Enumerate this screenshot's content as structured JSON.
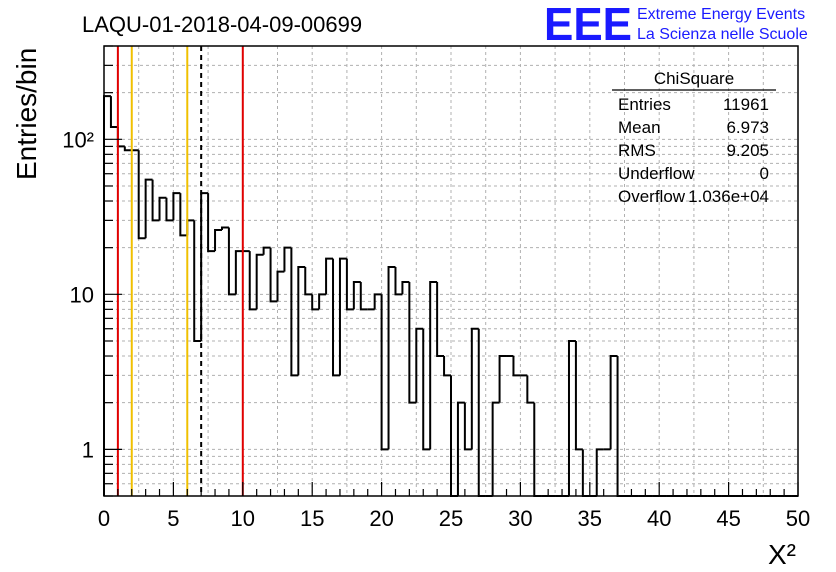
{
  "colors": {
    "accent_red": "#e00000",
    "accent_yellow": "#f0c000",
    "logo_blue": "#1a1aff"
  },
  "logo": {
    "mark": "EEE",
    "line1": "Extreme Energy Events",
    "line2": "La Scienza nelle Scuole"
  },
  "stats": {
    "title": "ChiSquare",
    "rows": [
      {
        "label": "Entries",
        "value": "11961"
      },
      {
        "label": "Mean",
        "value": "6.973"
      },
      {
        "label": "RMS",
        "value": "9.205"
      },
      {
        "label": "Underflow",
        "value": "0"
      },
      {
        "label": "Overflow",
        "value": "1.036e+04"
      }
    ]
  },
  "chart_data": {
    "type": "bar",
    "title": "LAQU-01-2018-04-09-00699",
    "xlabel": "X²",
    "ylabel": "Entries/bin",
    "xlim": [
      0,
      50
    ],
    "ylim": [
      0.5,
      400
    ],
    "log_y": true,
    "grid": true,
    "xticks": [
      "0",
      "5",
      "10",
      "15",
      "20",
      "25",
      "30",
      "35",
      "40",
      "45",
      "50"
    ],
    "yticks": [
      "1",
      "10",
      "10²"
    ],
    "bin_width": 0.5,
    "bin_start": 0,
    "values": [
      190,
      120,
      90,
      85,
      85,
      23,
      55,
      30,
      42,
      30,
      45,
      24,
      30,
      5,
      45,
      19,
      26,
      27,
      10,
      19,
      19,
      8,
      18,
      20,
      9,
      14,
      20,
      3,
      15,
      10,
      8,
      10,
      17,
      3,
      17,
      8,
      12,
      8,
      8,
      10,
      1,
      15,
      10,
      12,
      2,
      6,
      1,
      12,
      4,
      3,
      0,
      2,
      1,
      6,
      0,
      0,
      2,
      4,
      4,
      3,
      3,
      2,
      0,
      0,
      0,
      0,
      0,
      5,
      1,
      0,
      0,
      1,
      1,
      4,
      0,
      0,
      0,
      0,
      0,
      0,
      0,
      0,
      0,
      0,
      0,
      0,
      0,
      0,
      0,
      0,
      0,
      0,
      0,
      0,
      0,
      0,
      0,
      0,
      0,
      0
    ],
    "vlines": [
      {
        "x": 1,
        "color": "red",
        "style": "solid"
      },
      {
        "x": 2,
        "color": "yellow",
        "style": "solid"
      },
      {
        "x": 6,
        "color": "yellow",
        "style": "solid"
      },
      {
        "x": 7,
        "color": "black",
        "style": "dashed"
      },
      {
        "x": 10,
        "color": "red",
        "style": "solid"
      }
    ]
  }
}
